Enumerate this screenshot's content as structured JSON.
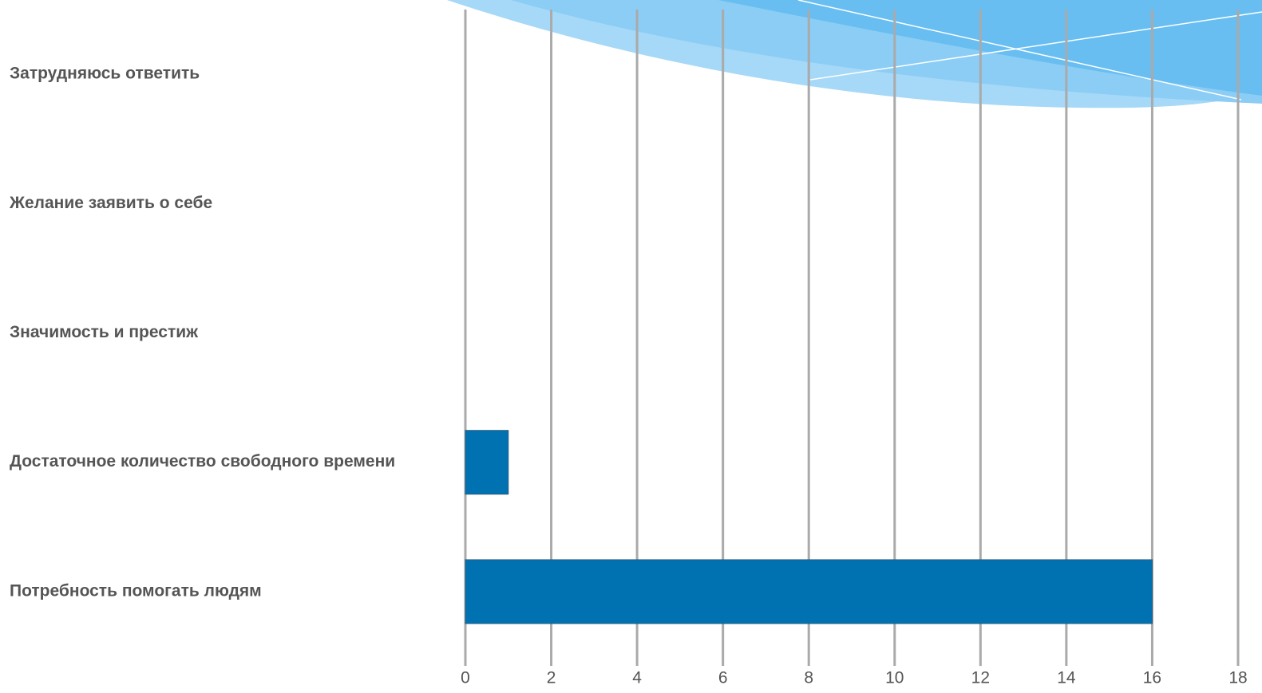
{
  "chart_data": {
    "type": "bar",
    "categories": [
      "Затрудняюсь ответить",
      "Желание заявить о себе",
      "Значимость и престиж",
      "Достаточное количество свободного времени",
      "Потребность помогать людям"
    ],
    "values": [
      0,
      0,
      0,
      1,
      16
    ],
    "color": "#0072b2",
    "xlim": [
      0,
      18
    ],
    "xticks": [
      0,
      2,
      4,
      6,
      8,
      10,
      12,
      14,
      16,
      18
    ],
    "grid": true
  }
}
